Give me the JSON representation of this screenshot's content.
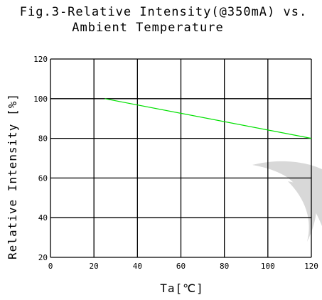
{
  "chart_data": {
    "type": "line",
    "title_line1": "Fig.3-Relative Intensity(@350mA) vs.",
    "title_line2": "Ambient Temperature",
    "xlabel": "Ta[℃]",
    "ylabel": "Relative Intensity [%]",
    "xlim": [
      0,
      120
    ],
    "ylim": [
      20,
      120
    ],
    "xticks": [
      "0",
      "20",
      "40",
      "60",
      "80",
      "100",
      "120"
    ],
    "yticks": [
      "20",
      "40",
      "60",
      "80",
      "100",
      "120"
    ],
    "grid": true,
    "series": [
      {
        "x": [
          25,
          120
        ],
        "y": [
          100,
          80
        ],
        "color": "#00e000"
      }
    ],
    "watermark_color": "#d8d8d8"
  }
}
